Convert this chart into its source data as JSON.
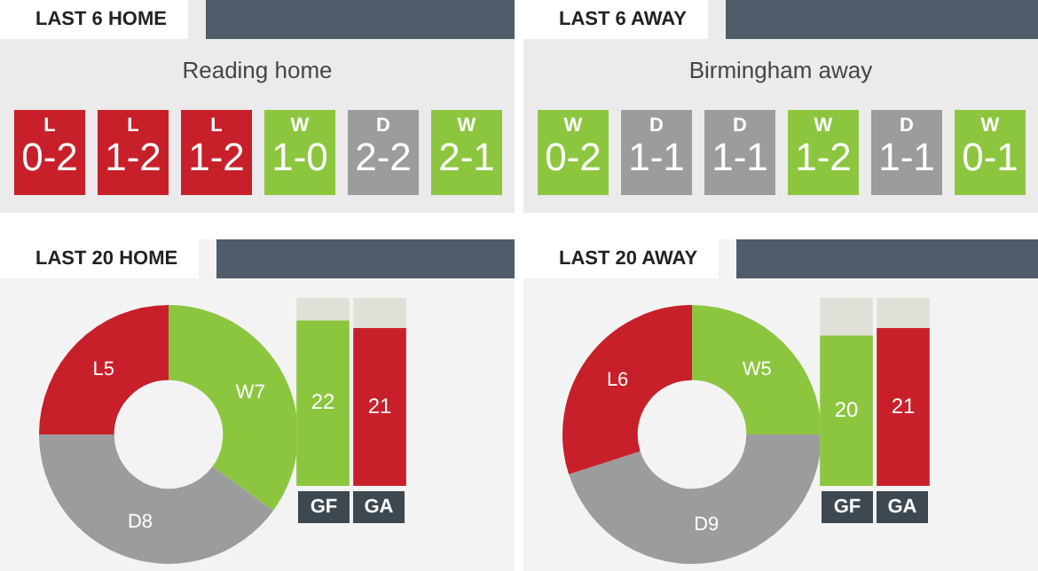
{
  "chart_data": [
    {
      "type": "other",
      "title": "LAST 6 HOME",
      "subtitle": "Reading home",
      "categories": [
        "L",
        "L",
        "L",
        "W",
        "D",
        "W"
      ],
      "annotations": [
        "0-2",
        "1-2",
        "1-2",
        "1-0",
        "2-2",
        "2-1"
      ],
      "colors": [
        "#c8202a",
        "#c8202a",
        "#c8202a",
        "#8cc63f",
        "#9b9d9c",
        "#8cc63f"
      ]
    },
    {
      "type": "other",
      "title": "LAST 6 AWAY",
      "subtitle": "Birmingham away",
      "categories": [
        "W",
        "D",
        "D",
        "W",
        "D",
        "W"
      ],
      "annotations": [
        "0-2",
        "1-1",
        "1-1",
        "1-2",
        "1-1",
        "0-1"
      ],
      "colors": [
        "#8cc63f",
        "#9b9d9c",
        "#9b9d9c",
        "#8cc63f",
        "#9b9d9c",
        "#8cc63f"
      ]
    },
    {
      "type": "donut",
      "title": "LAST 20 HOME",
      "categories": [
        null,
        null,
        null
      ],
      "values": [
        7,
        8,
        5
      ],
      "value_labels": [
        "W7",
        "D8",
        "L5"
      ],
      "colors": [
        "#8cc63f",
        "#9b9d9c",
        "#c8202a"
      ]
    },
    {
      "type": "bar",
      "categories": [
        "GF",
        "GA"
      ],
      "values": [
        22,
        21
      ],
      "colors": [
        "#8cc63f",
        "#c8202a"
      ],
      "data_labels": true
    },
    {
      "type": "donut",
      "title": "LAST 20 AWAY",
      "categories": [
        null,
        null,
        null
      ],
      "values": [
        5,
        9,
        6
      ],
      "value_labels": [
        "W5",
        "D9",
        "L6"
      ],
      "colors": [
        "#8cc63f",
        "#9b9d9c",
        "#c8202a"
      ]
    },
    {
      "type": "bar",
      "categories": [
        "GF",
        "GA"
      ],
      "values": [
        20,
        21
      ],
      "colors": [
        "#8cc63f",
        "#c8202a"
      ],
      "data_labels": true
    }
  ]
}
